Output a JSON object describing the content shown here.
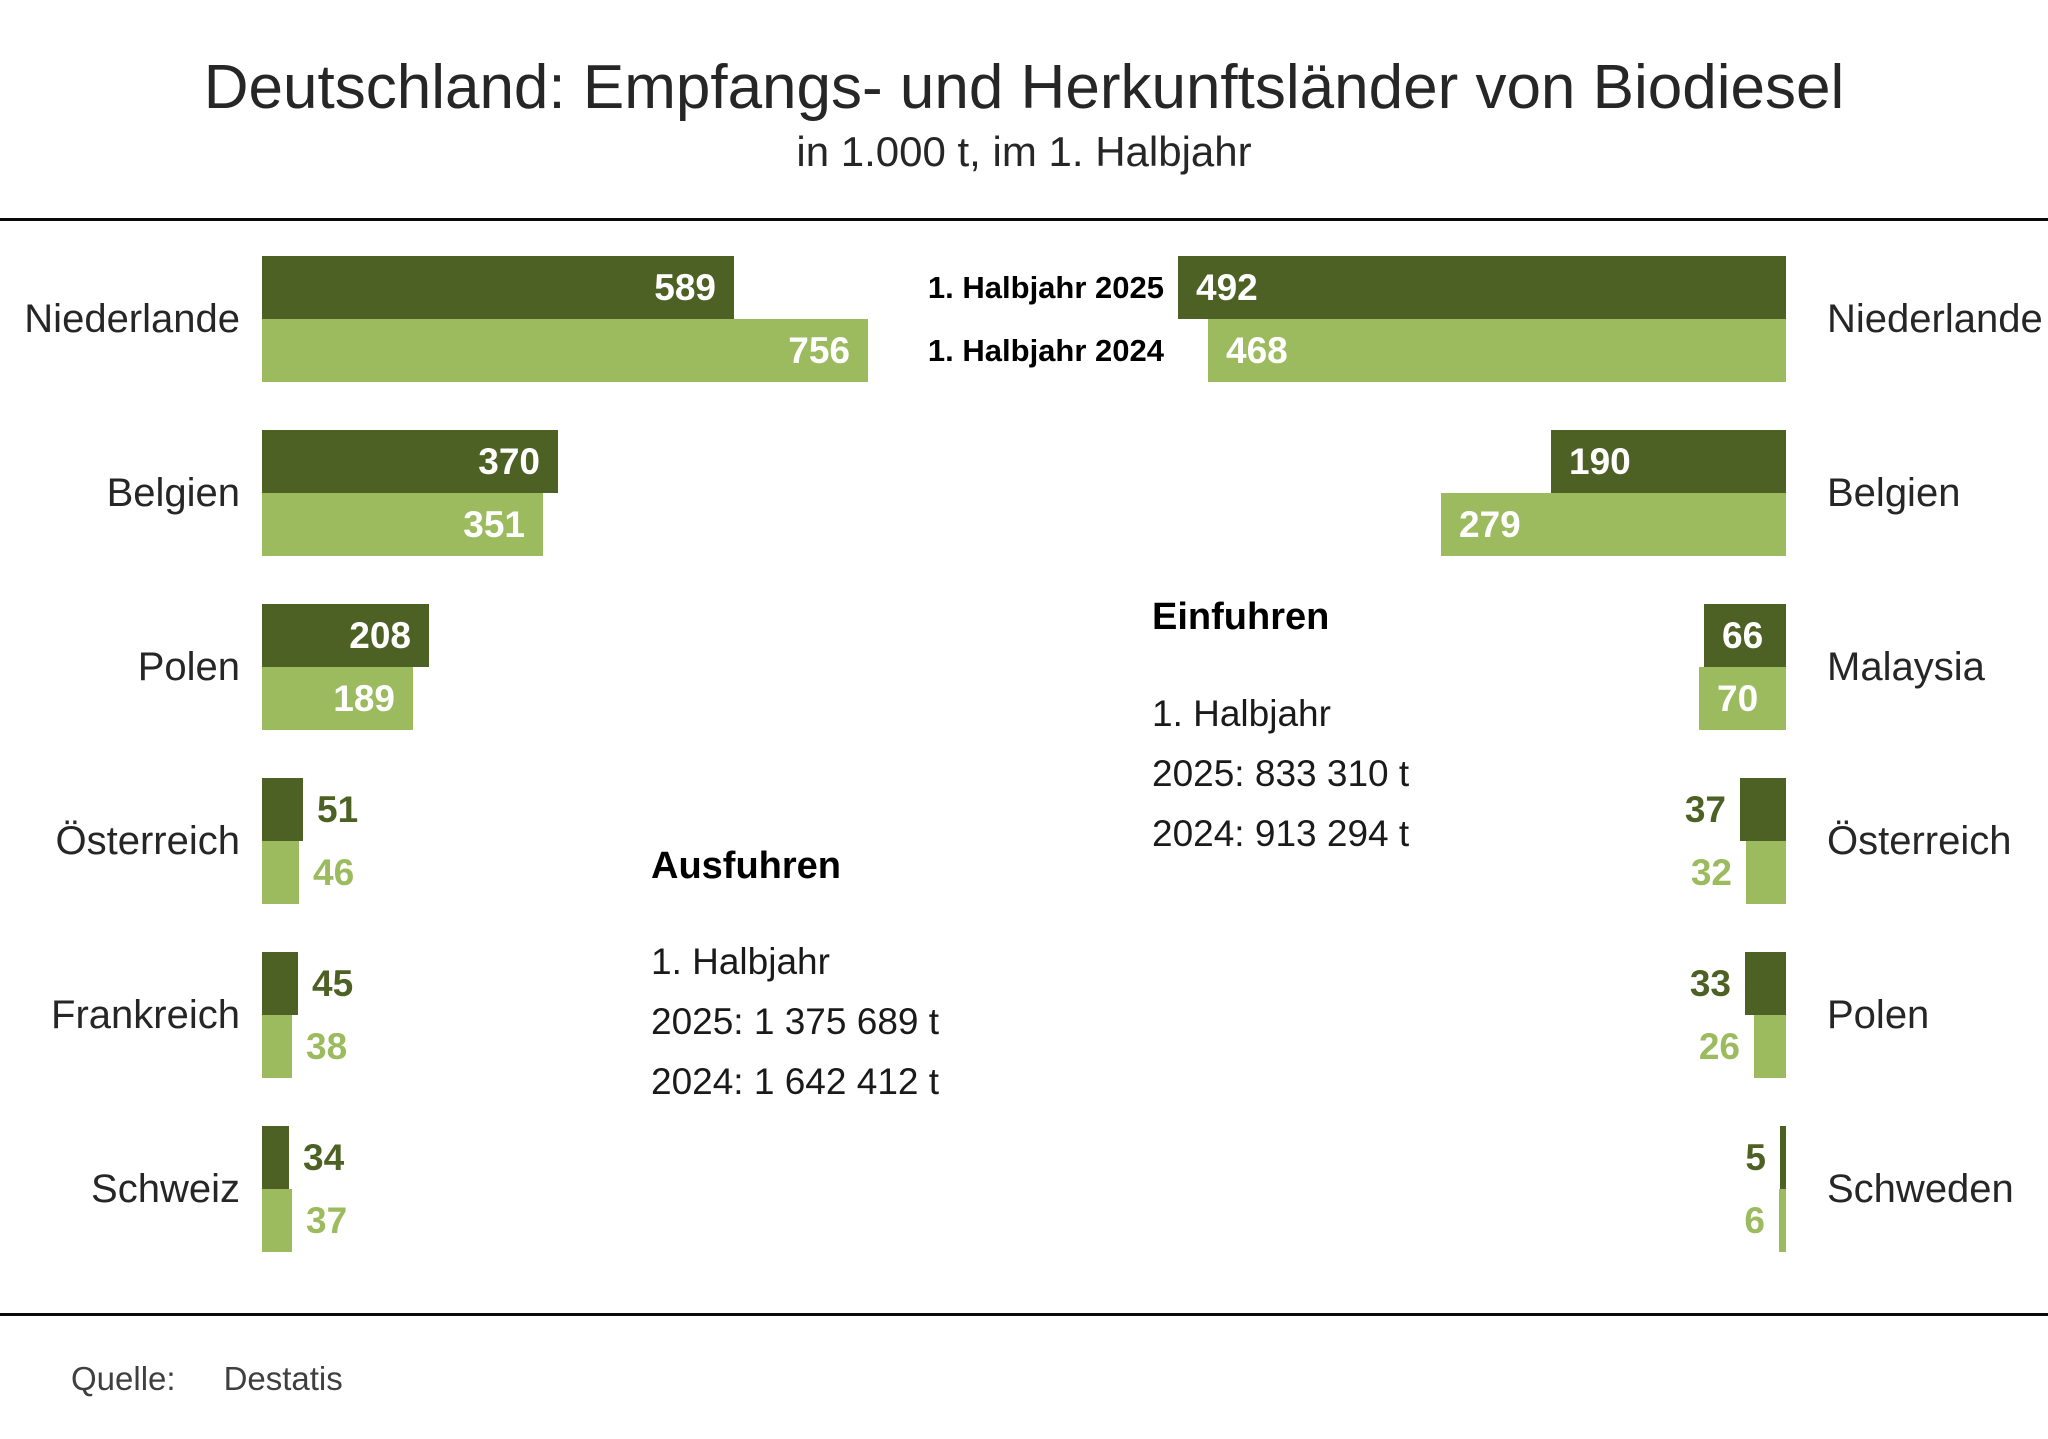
{
  "title": "Deutschland: Empfangs- und Herkunftsländer von Biodiesel",
  "subtitle": "in 1.000 t, im 1. Halbjahr",
  "legend": {
    "y2025": "1. Halbjahr 2025",
    "y2024": "1. Halbjahr 2024"
  },
  "colors": {
    "year2025": "#4e6124",
    "year2024": "#9bbb5e"
  },
  "source": {
    "label": "Quelle:",
    "value": "Destatis"
  },
  "chart_data": {
    "type": "bar",
    "orientation": "horizontal-back-to-back",
    "unit": "1.000 t",
    "series_names": [
      "1. Halbjahr 2025",
      "1. Halbjahr 2024"
    ],
    "left": {
      "heading": "Ausfuhren",
      "note_lines": [
        "1. Halbjahr",
        "2025: 1 375 689 t",
        "2024: 1 642 412 t"
      ],
      "categories": [
        "Niederlande",
        "Belgien",
        "Polen",
        "Österreich",
        "Frankreich",
        "Schweiz"
      ],
      "series": [
        {
          "name": "1. Halbjahr 2025",
          "values": [
            589,
            370,
            208,
            51,
            45,
            34
          ]
        },
        {
          "name": "1. Halbjahr 2024",
          "values": [
            756,
            351,
            189,
            46,
            38,
            37
          ]
        }
      ]
    },
    "right": {
      "heading": "Einfuhren",
      "note_lines": [
        "1. Halbjahr",
        "2025: 833 310 t",
        "2024: 913 294 t"
      ],
      "categories": [
        "Niederlande",
        "Belgien",
        "Malaysia",
        "Österreich",
        "Polen",
        "Schweden"
      ],
      "series": [
        {
          "name": "1. Halbjahr 2025",
          "values": [
            492,
            190,
            66,
            37,
            33,
            5
          ]
        },
        {
          "name": "1. Halbjahr 2024",
          "values": [
            468,
            279,
            70,
            32,
            26,
            6
          ]
        }
      ]
    }
  }
}
